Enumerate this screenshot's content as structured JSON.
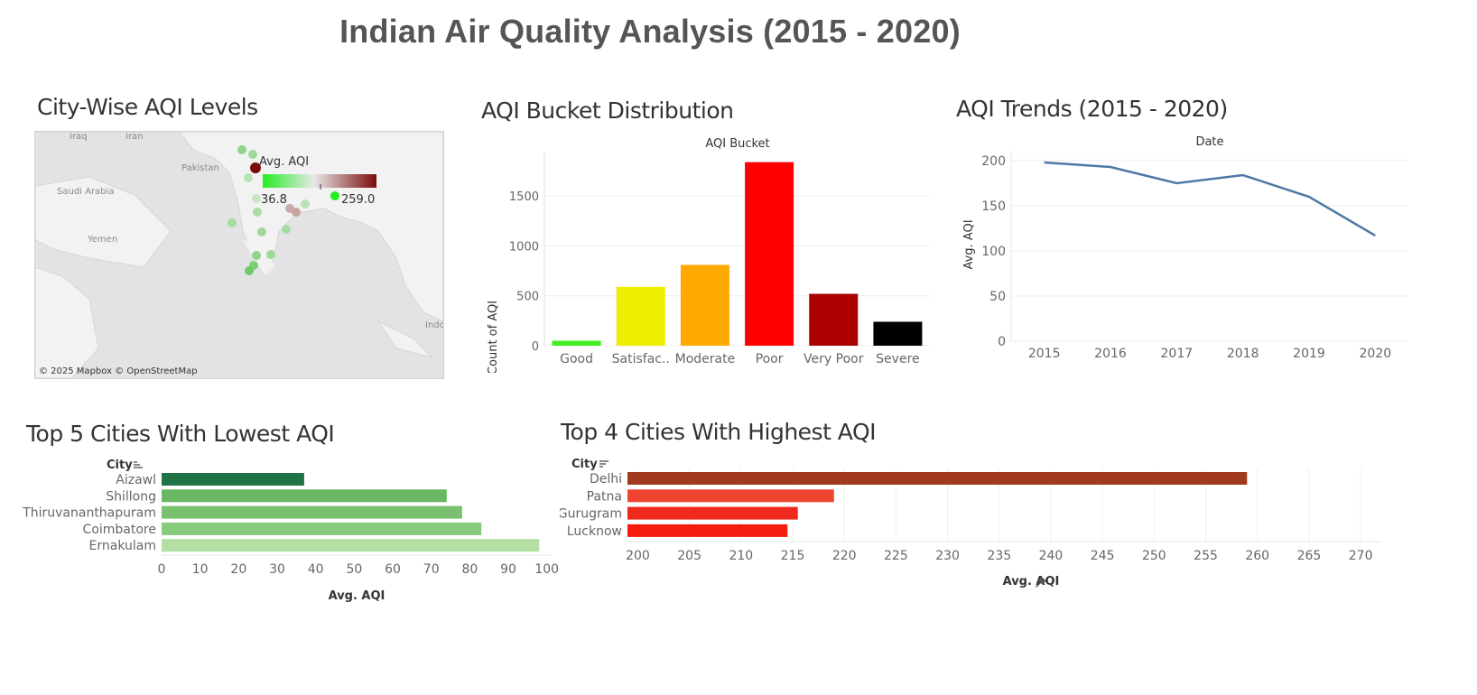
{
  "dashboard_title": "Indian Air Quality Analysis (2015 - 2020)",
  "sheets": {
    "map_title": "City-Wise AQI Levels",
    "bucket_title": "AQI Bucket Distribution",
    "trend_title": "AQI Trends (2015 - 2020)",
    "lowest_title": "Top 5 Cities With Lowest AQI",
    "highest_title": "Top 4 Cities With Highest AQI"
  },
  "map": {
    "legend_title": "Avg. AQI",
    "legend_min": "36.8",
    "legend_max": "259.0",
    "attribution": "© 2025 Mapbox © OpenStreetMap",
    "place_labels": [
      "Iraq",
      "Iran",
      "Pakistan",
      "Saudi Arabia",
      "Yemen",
      "Indo"
    ],
    "colors": {
      "low": "#3ec93e",
      "high": "#7a0c0c"
    }
  },
  "chart_data": [
    {
      "type": "bar",
      "id": "bucket",
      "title": "AQI Bucket",
      "categories": [
        "Good",
        "Satisfac..",
        "Moderate",
        "Poor",
        "Very Poor",
        "Severe"
      ],
      "values": [
        50,
        590,
        810,
        1840,
        520,
        240
      ],
      "colors": [
        "#44ee22",
        "#eeee00",
        "#ffaa00",
        "#ff0000",
        "#aa0000",
        "#000000"
      ],
      "xlabel": "",
      "ylabel": "Count of AQI",
      "yticks": [
        0,
        500,
        1000,
        1500
      ],
      "ylim": [
        0,
        1900
      ]
    },
    {
      "type": "line",
      "id": "trend",
      "title": "Date",
      "x": [
        "2015",
        "2016",
        "2017",
        "2018",
        "2019",
        "2020"
      ],
      "values": [
        198,
        193,
        175,
        184,
        160,
        117
      ],
      "color": "#4e79a7",
      "xlabel": "",
      "ylabel": "Avg. AQI",
      "yticks": [
        0,
        50,
        100,
        150,
        200
      ],
      "ylim": [
        0,
        210
      ]
    },
    {
      "type": "bar",
      "orientation": "horizontal",
      "id": "lowest",
      "header": "City",
      "categories": [
        "Aizawl",
        "Shillong",
        "Thiruvananthapuram",
        "Coimbatore",
        "Ernakulam"
      ],
      "values": [
        37,
        74,
        78,
        83,
        98
      ],
      "colors": [
        "#217346",
        "#6ab764",
        "#79c16f",
        "#86ca7b",
        "#b3dfa5"
      ],
      "xlabel": "Avg. AQI",
      "xticks": [
        0,
        10,
        20,
        30,
        40,
        50,
        60,
        70,
        80,
        90,
        100
      ],
      "xlim": [
        0,
        101
      ]
    },
    {
      "type": "bar",
      "orientation": "horizontal",
      "id": "highest",
      "header": "City",
      "categories": [
        "Delhi",
        "Patna",
        "Gurugram",
        "Lucknow"
      ],
      "values": [
        259,
        219,
        215.5,
        214.5
      ],
      "colors": [
        "#a0391e",
        "#ef4430",
        "#f0291e",
        "#f51b0e"
      ],
      "xlabel": "Avg. AQI",
      "xticks": [
        200,
        205,
        210,
        215,
        220,
        225,
        230,
        235,
        240,
        245,
        250,
        255,
        260,
        265,
        270
      ],
      "xlim": [
        199,
        272
      ]
    }
  ]
}
